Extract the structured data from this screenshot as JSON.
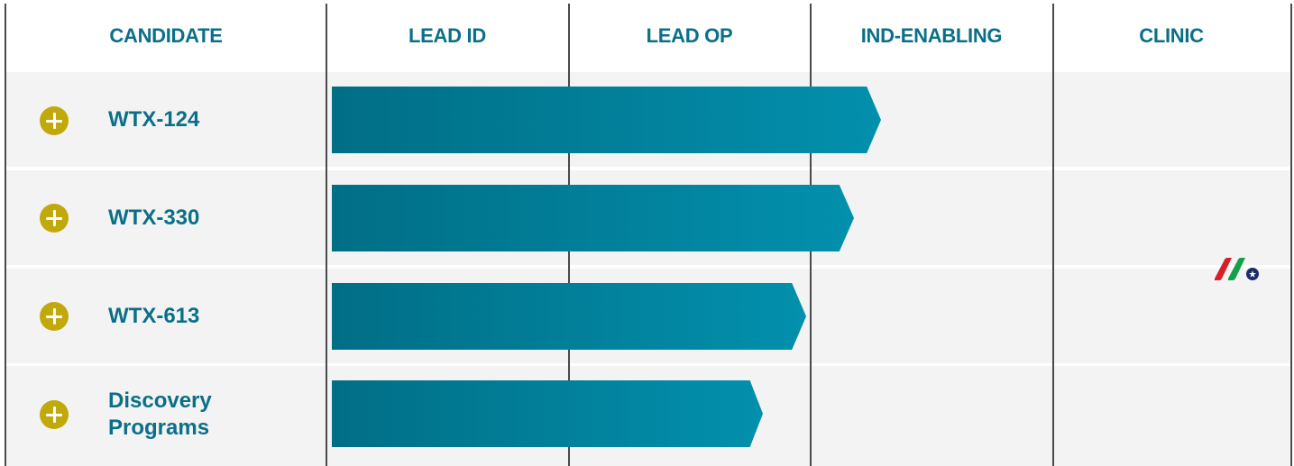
{
  "headers": [
    "CANDIDATE",
    "LEAD ID",
    "LEAD OP",
    "IND-ENABLING",
    "CLINIC"
  ],
  "candidates": [
    {
      "name": "WTX-124",
      "progress_end_stage": 2.7
    },
    {
      "name": "WTX-330",
      "progress_end_stage": 2.6
    },
    {
      "name": "WTX-613",
      "progress_end_stage": 2.4
    },
    {
      "name": "Discovery Programs",
      "name_lines": [
        "Discovery",
        "Programs"
      ],
      "progress_end_stage": 2.2
    }
  ],
  "colors": {
    "header_text": "#0a6f89",
    "bar_start": "#016e86",
    "bar_end": "#0290ad",
    "plus_icon": "#c2a90b",
    "row_background": "#f3f3f3"
  },
  "icons": {
    "expand": "plus-circle-icon",
    "watermark": "logo-icon"
  }
}
